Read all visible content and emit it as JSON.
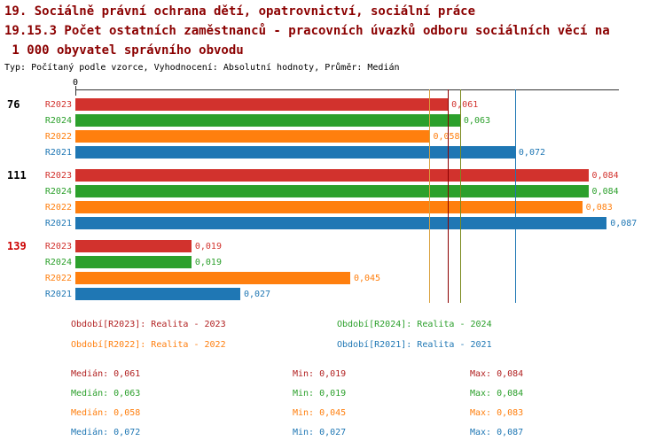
{
  "title": {
    "line1": "19. Sociálně právní ochrana dětí, opatrovnictví, sociální práce",
    "line2": "19.15.3 Počet ostatních zaměstnanců - pracovních úvazků odboru sociálních věcí na",
    "line3": " 1 000 obyvatel správního obvodu",
    "subtitle": "Typ: Počítaný podle vzorce, Vyhodnocení: Absolutní hodnoty, Průměr: Medián"
  },
  "colors": {
    "title": "#8b0000",
    "R2023": "#d2322d",
    "R2024": "#2ca02c",
    "R2022": "#ff7f0e",
    "R2021": "#1f77b4",
    "group_label": "#000000",
    "group_label_highlight": "#cc0000",
    "axis": "#333333"
  },
  "chart_data": {
    "type": "bar",
    "orientation": "horizontal",
    "axis_origin_label": "0",
    "axis_max": 0.089,
    "series_order": [
      "R2023",
      "R2024",
      "R2022",
      "R2021"
    ],
    "groups": [
      {
        "label": "76",
        "highlight": false,
        "bars": [
          {
            "series": "R2023",
            "value": 0.061,
            "label": "0,061"
          },
          {
            "series": "R2024",
            "value": 0.063,
            "label": "0,063"
          },
          {
            "series": "R2022",
            "value": 0.058,
            "label": "0,058"
          },
          {
            "series": "R2021",
            "value": 0.072,
            "label": "0,072"
          }
        ]
      },
      {
        "label": "111",
        "highlight": false,
        "bars": [
          {
            "series": "R2023",
            "value": 0.084,
            "label": "0,084"
          },
          {
            "series": "R2024",
            "value": 0.084,
            "label": "0,084"
          },
          {
            "series": "R2022",
            "value": 0.083,
            "label": "0,083"
          },
          {
            "series": "R2021",
            "value": 0.087,
            "label": "0,087"
          }
        ]
      },
      {
        "label": "139",
        "highlight": true,
        "bars": [
          {
            "series": "R2023",
            "value": 0.019,
            "label": "0,019"
          },
          {
            "series": "R2024",
            "value": 0.019,
            "label": "0,019"
          },
          {
            "series": "R2022",
            "value": 0.045,
            "label": "0,045"
          },
          {
            "series": "R2021",
            "value": 0.027,
            "label": "0,027"
          }
        ]
      }
    ],
    "median_lines": [
      {
        "series": "R2022",
        "value": 0.058,
        "color": "#d9a03c"
      },
      {
        "series": "R2023",
        "value": 0.061,
        "color": "#8b0000"
      },
      {
        "series": "R2024",
        "value": 0.063,
        "color": "#7a8a1e"
      },
      {
        "series": "R2021",
        "value": 0.072,
        "color": "#1f77b4"
      }
    ]
  },
  "legend": {
    "items": [
      {
        "text": "Období[R2023]: Realita - 2023",
        "color": "#b22222"
      },
      {
        "text": "Období[R2024]: Realita - 2024",
        "color": "#2ca02c"
      },
      {
        "text": "Období[R2022]: Realita - 2022",
        "color": "#ff7f0e"
      },
      {
        "text": "Období[R2021]: Realita - 2021",
        "color": "#1f77b4"
      }
    ]
  },
  "stats": {
    "rows": [
      {
        "median": "Medián: 0,061",
        "min": "Min: 0,019",
        "max": "Max: 0,084",
        "color": "#b22222"
      },
      {
        "median": "Medián: 0,063",
        "min": "Min: 0,019",
        "max": "Max: 0,084",
        "color": "#2ca02c"
      },
      {
        "median": "Medián: 0,058",
        "min": "Min: 0,045",
        "max": "Max: 0,083",
        "color": "#ff7f0e"
      },
      {
        "median": "Medián: 0,072",
        "min": "Min: 0,027",
        "max": "Max: 0,087",
        "color": "#1f77b4"
      }
    ]
  }
}
